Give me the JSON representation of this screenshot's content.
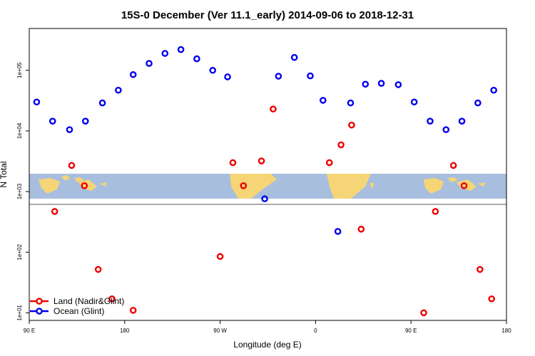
{
  "chart_data": {
    "type": "scatter",
    "title": "15S-0 December (Ver 11.1_early)   2014-09-06 to 2018-12-31",
    "xlabel": "Longitude (deg E)",
    "ylabel": "N Total",
    "x_ticks": [
      {
        "value": 90,
        "label": "90 E"
      },
      {
        "value": 180,
        "label": "180"
      },
      {
        "value": 270,
        "label": "90 W"
      },
      {
        "value": 360,
        "label": "0"
      },
      {
        "value": 450,
        "label": "90 E"
      },
      {
        "value": 540,
        "label": "180"
      }
    ],
    "y_ticks": [
      {
        "value": 10,
        "label": "1e+01"
      },
      {
        "value": 100,
        "label": "1e+02"
      },
      {
        "value": 1000,
        "label": "1e+03"
      },
      {
        "value": 10000,
        "label": "1e+04"
      },
      {
        "value": 100000,
        "label": "1e+05"
      }
    ],
    "xlim": [
      90,
      540
    ],
    "ylim": [
      7.5,
      490000
    ],
    "y_scale": "log",
    "legend_position": "bottom-left",
    "series": [
      {
        "name": "Land (Nadir&Glint)",
        "color": "#ee0000",
        "points": [
          [
            114,
            470
          ],
          [
            130,
            2700
          ],
          [
            142,
            1250
          ],
          [
            155,
            52
          ],
          [
            168,
            17
          ],
          [
            188,
            11
          ],
          [
            270,
            85
          ],
          [
            282,
            3000
          ],
          [
            292,
            1250
          ],
          [
            309,
            3200
          ],
          [
            320,
            23000
          ],
          [
            373,
            3000
          ],
          [
            384,
            5900
          ],
          [
            394,
            12500
          ],
          [
            403,
            240
          ],
          [
            462,
            10
          ],
          [
            473,
            470
          ],
          [
            490,
            2700
          ],
          [
            500,
            1250
          ],
          [
            515,
            52
          ],
          [
            526,
            17
          ]
        ]
      },
      {
        "name": "Ocean (Glint)",
        "color": "#0000ee",
        "points": [
          [
            97,
            30000
          ],
          [
            112,
            14500
          ],
          [
            128,
            10500
          ],
          [
            143,
            14500
          ],
          [
            159,
            29000
          ],
          [
            174,
            47000
          ],
          [
            188,
            85000
          ],
          [
            203,
            130000
          ],
          [
            218,
            190000
          ],
          [
            233,
            220000
          ],
          [
            248,
            155000
          ],
          [
            263,
            100000
          ],
          [
            277,
            78000
          ],
          [
            312,
            760
          ],
          [
            325,
            80000
          ],
          [
            340,
            163000
          ],
          [
            355,
            81000
          ],
          [
            367,
            32000
          ],
          [
            381,
            220
          ],
          [
            393,
            29000
          ],
          [
            407,
            59000
          ],
          [
            422,
            61000
          ],
          [
            438,
            58000
          ],
          [
            453,
            30000
          ],
          [
            468,
            14500
          ],
          [
            483,
            10500
          ],
          [
            498,
            14500
          ],
          [
            513,
            29000
          ],
          [
            528,
            47000
          ]
        ]
      }
    ]
  }
}
